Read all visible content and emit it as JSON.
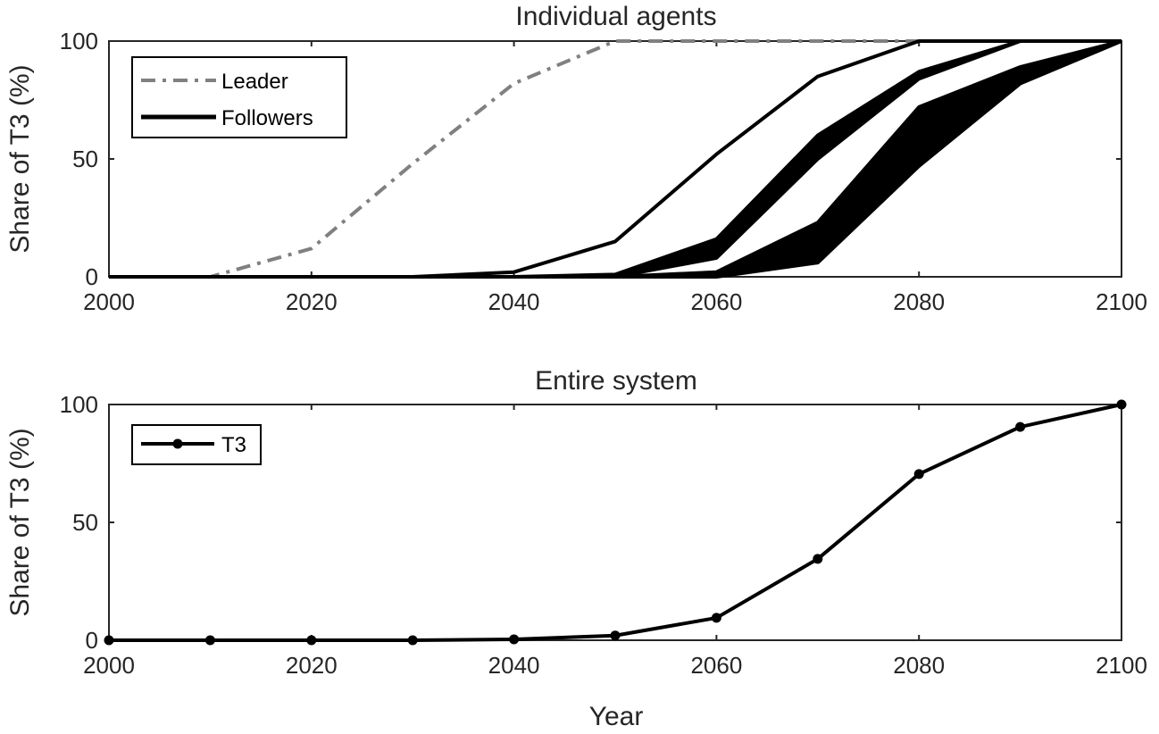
{
  "chart_data": [
    {
      "type": "line",
      "title": "Individual agents",
      "xlabel": "",
      "ylabel": "Share of T3 (%)",
      "xlim": [
        2000,
        2100
      ],
      "ylim": [
        0,
        100
      ],
      "xticks": [
        2000,
        2020,
        2040,
        2060,
        2080,
        2100
      ],
      "yticks": [
        0,
        50,
        100
      ],
      "grid": false,
      "legend": {
        "placement": "top-left",
        "entries": [
          "Leader",
          "Followers"
        ]
      },
      "x": [
        2000,
        2010,
        2020,
        2030,
        2040,
        2050,
        2060,
        2070,
        2080,
        2090,
        2100
      ],
      "series": [
        {
          "name": "Leader",
          "style": "dash-dot",
          "color": "#808080",
          "values": [
            0,
            0,
            12,
            48,
            82,
            100,
            100,
            100,
            100,
            100,
            100
          ]
        },
        {
          "name": "Followers",
          "style": "solid",
          "color": "#000000",
          "values": [
            0,
            0,
            0,
            0,
            2,
            15,
            52,
            85,
            100,
            100,
            100
          ]
        },
        {
          "name": "Followers",
          "style": "solid",
          "color": "#000000",
          "values": [
            0,
            0,
            0,
            0,
            0,
            1,
            16,
            60,
            87,
            100,
            100
          ]
        },
        {
          "name": "Followers",
          "style": "solid",
          "color": "#000000",
          "values": [
            0,
            0,
            0,
            0,
            0,
            0,
            8,
            50,
            84,
            100,
            100
          ]
        },
        {
          "name": "Followers",
          "style": "solid",
          "color": "#000000",
          "values": [
            0,
            0,
            0,
            0,
            0,
            0,
            2,
            23,
            72,
            89,
            100
          ]
        },
        {
          "name": "Followers",
          "style": "solid",
          "color": "#000000",
          "values": [
            0,
            0,
            0,
            0,
            0,
            0,
            0,
            6,
            47,
            82,
            100
          ]
        }
      ],
      "filled_bands": [
        {
          "name": "Followers",
          "color": "#000000",
          "upper": [
            0,
            0,
            0,
            0,
            0,
            1,
            16,
            60,
            87,
            100,
            100
          ],
          "lower": [
            0,
            0,
            0,
            0,
            0,
            0,
            8,
            50,
            84,
            100,
            100
          ]
        },
        {
          "name": "Followers",
          "color": "#000000",
          "upper": [
            0,
            0,
            0,
            0,
            0,
            0,
            2,
            23,
            72,
            89,
            100
          ],
          "lower": [
            0,
            0,
            0,
            0,
            0,
            0,
            0,
            6,
            47,
            82,
            100
          ]
        }
      ]
    },
    {
      "type": "line",
      "title": "Entire system",
      "xlabel": "Year",
      "ylabel": "Share of T3 (%)",
      "xlim": [
        2000,
        2100
      ],
      "ylim": [
        0,
        100
      ],
      "xticks": [
        2000,
        2020,
        2040,
        2060,
        2080,
        2100
      ],
      "yticks": [
        0,
        50,
        100
      ],
      "grid": false,
      "legend": {
        "placement": "top-left",
        "entries": [
          "T3"
        ]
      },
      "x": [
        2000,
        2010,
        2020,
        2030,
        2040,
        2050,
        2060,
        2070,
        2080,
        2090,
        2100
      ],
      "series": [
        {
          "name": "T3",
          "style": "solid-marker",
          "color": "#000000",
          "values": [
            0,
            0,
            0,
            0,
            0.4,
            2,
            9.5,
            34.5,
            70.5,
            90.5,
            100
          ]
        }
      ]
    }
  ]
}
